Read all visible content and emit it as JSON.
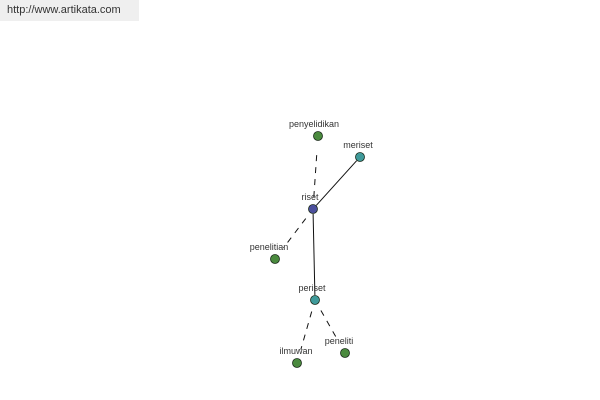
{
  "header": {
    "url": "http://www.artikata.com"
  },
  "colors": {
    "synonym": "#4a8a3e",
    "related": "#3f9a9a",
    "center": "#4b4f9c",
    "edge": "#111111"
  },
  "nodes": [
    {
      "id": "riset",
      "label": "riset",
      "kind": "center"
    },
    {
      "id": "penyelidikan",
      "label": "penyelidikan",
      "kind": "synonym"
    },
    {
      "id": "meriset",
      "label": "meriset",
      "kind": "related"
    },
    {
      "id": "penelitian",
      "label": "penelitian",
      "kind": "synonym"
    },
    {
      "id": "periset",
      "label": "periset",
      "kind": "related"
    },
    {
      "id": "ilmuwan",
      "label": "ilmuwan",
      "kind": "synonym"
    },
    {
      "id": "peneliti",
      "label": "peneliti",
      "kind": "synonym"
    }
  ],
  "edges": [
    {
      "from": "riset",
      "to": "penyelidikan",
      "style": "dashed"
    },
    {
      "from": "riset",
      "to": "meriset",
      "style": "solid"
    },
    {
      "from": "riset",
      "to": "penelitian",
      "style": "dashed"
    },
    {
      "from": "riset",
      "to": "periset",
      "style": "solid"
    },
    {
      "from": "periset",
      "to": "ilmuwan",
      "style": "dashed"
    },
    {
      "from": "periset",
      "to": "peneliti",
      "style": "dashed"
    }
  ]
}
